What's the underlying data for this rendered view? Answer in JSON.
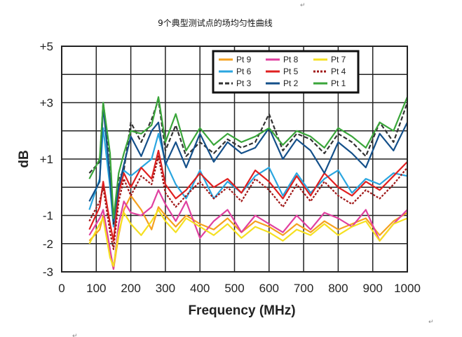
{
  "chart_data": {
    "type": "line",
    "title": "9个典型测试点的场均匀性曲线",
    "xlabel": "Frequency (MHz)",
    "ylabel": "dB",
    "xlim": [
      0,
      1000
    ],
    "ylim": [
      -3,
      5
    ],
    "xticks": [
      0,
      100,
      200,
      300,
      400,
      500,
      600,
      700,
      800,
      900,
      1000
    ],
    "xtick_labels": [
      "0",
      "100",
      "200",
      "300",
      "400",
      "500",
      "600",
      "700",
      "800",
      "900",
      "1000"
    ],
    "yticks": [
      -3,
      -2,
      -1,
      0,
      1,
      2,
      3,
      4,
      5
    ],
    "ytick_labels": [
      "-3",
      "-2",
      "-1",
      "",
      "+1",
      "",
      "+3",
      "",
      "+5"
    ],
    "grid": true,
    "legend_position": "top-right",
    "x": [
      80,
      110,
      120,
      140,
      150,
      165,
      180,
      200,
      230,
      260,
      280,
      300,
      330,
      360,
      400,
      440,
      480,
      520,
      560,
      600,
      640,
      680,
      720,
      760,
      800,
      840,
      880,
      920,
      960,
      1000
    ],
    "series": [
      {
        "name": "Pt 9",
        "color": "#f5a11f",
        "dash": "",
        "values": [
          -1.9,
          -1.5,
          -1.0,
          -2.4,
          -2.9,
          -1.7,
          -0.8,
          -0.3,
          -0.8,
          -1.5,
          -0.7,
          -1.0,
          -1.4,
          -1.0,
          -1.3,
          -1.5,
          -1.1,
          -1.6,
          -1.2,
          -1.4,
          -1.7,
          -1.3,
          -1.6,
          -1.2,
          -1.5,
          -1.3,
          -1.1,
          -1.7,
          -1.2,
          -0.9
        ]
      },
      {
        "name": "Pt 6",
        "color": "#2aa6e0",
        "dash": "",
        "values": [
          -0.8,
          0.3,
          2.1,
          0.0,
          -1.4,
          -0.2,
          0.6,
          0.4,
          0.7,
          1.0,
          1.9,
          0.9,
          0.1,
          -0.4,
          0.6,
          -0.4,
          0.2,
          -0.2,
          0.4,
          0.7,
          -0.3,
          0.5,
          -0.2,
          0.3,
          0.6,
          -0.2,
          0.3,
          0.1,
          0.5,
          0.4
        ]
      },
      {
        "name": "Pt 3",
        "color": "#333333",
        "dash": "6,3",
        "values": [
          0.5,
          0.9,
          3.0,
          1.0,
          -1.3,
          0.3,
          0.6,
          2.3,
          1.6,
          2.4,
          3.1,
          1.3,
          2.2,
          1.1,
          1.6,
          1.2,
          1.7,
          1.4,
          1.6,
          2.6,
          1.3,
          1.9,
          1.7,
          1.2,
          1.9,
          1.6,
          1.1,
          2.3,
          1.6,
          3.0
        ]
      },
      {
        "name": "Pt 8",
        "color": "#e040a0",
        "dash": "",
        "values": [
          -1.7,
          -1.1,
          -0.8,
          -2.2,
          -2.9,
          -1.3,
          -0.5,
          -0.9,
          -1.0,
          -0.7,
          -0.1,
          -0.6,
          -1.2,
          -0.5,
          -1.8,
          -1.2,
          -0.8,
          -1.6,
          -1.0,
          -1.3,
          -1.6,
          -1.0,
          -1.5,
          -0.9,
          -1.1,
          -1.4,
          -0.8,
          -1.9,
          -1.3,
          -0.8
        ]
      },
      {
        "name": "Pt 5",
        "color": "#e02020",
        "dash": "",
        "values": [
          -1.5,
          -0.7,
          0.2,
          -1.3,
          -1.9,
          -0.2,
          0.5,
          0.0,
          0.7,
          0.3,
          1.3,
          0.1,
          -0.4,
          -0.1,
          0.5,
          0.0,
          0.3,
          -0.2,
          0.6,
          0.2,
          -0.4,
          0.4,
          -0.3,
          0.5,
          0.0,
          -0.3,
          0.2,
          -0.1,
          0.4,
          0.9
        ]
      },
      {
        "name": "Pt 2",
        "color": "#14508a",
        "dash": "",
        "values": [
          -0.5,
          0.2,
          2.9,
          0.3,
          -1.2,
          0.0,
          0.8,
          1.8,
          1.1,
          2.0,
          2.3,
          0.8,
          1.6,
          0.7,
          1.9,
          0.9,
          1.6,
          1.2,
          1.4,
          2.1,
          1.0,
          1.7,
          1.3,
          0.5,
          1.6,
          1.2,
          0.7,
          1.9,
          1.3,
          2.3
        ]
      },
      {
        "name": "Pt 7",
        "color": "#f5e020",
        "dash": "",
        "values": [
          -2.0,
          -1.3,
          -1.1,
          -2.5,
          -2.8,
          -1.6,
          -0.9,
          -1.3,
          -1.7,
          -1.2,
          -0.8,
          -1.2,
          -1.6,
          -1.1,
          -1.4,
          -1.7,
          -1.3,
          -1.8,
          -1.4,
          -1.6,
          -1.9,
          -1.5,
          -1.7,
          -1.3,
          -1.7,
          -1.4,
          -1.2,
          -1.9,
          -1.3,
          -1.1
        ]
      },
      {
        "name": "Pt 4",
        "color": "#a01818",
        "dash": "3,2",
        "values": [
          -1.2,
          -0.5,
          0.0,
          -1.6,
          -2.2,
          -0.5,
          0.3,
          -0.3,
          0.4,
          0.1,
          1.1,
          -0.2,
          -0.7,
          -0.3,
          0.2,
          -0.4,
          0.0,
          -0.5,
          0.3,
          -0.1,
          -0.7,
          0.1,
          -0.5,
          0.2,
          -0.3,
          -0.6,
          -0.1,
          -0.4,
          0.1,
          0.7
        ]
      },
      {
        "name": "Pt 1",
        "color": "#3aa63a",
        "dash": "",
        "values": [
          0.3,
          1.0,
          3.0,
          1.2,
          -1.1,
          0.5,
          1.2,
          2.0,
          1.9,
          2.2,
          3.2,
          1.6,
          2.6,
          1.3,
          2.1,
          1.5,
          1.9,
          1.6,
          1.8,
          2.1,
          1.5,
          2.0,
          1.8,
          1.4,
          2.1,
          1.8,
          1.4,
          2.3,
          2.0,
          3.2
        ]
      }
    ]
  },
  "marks": [
    "↵",
    "↵",
    "↵"
  ]
}
